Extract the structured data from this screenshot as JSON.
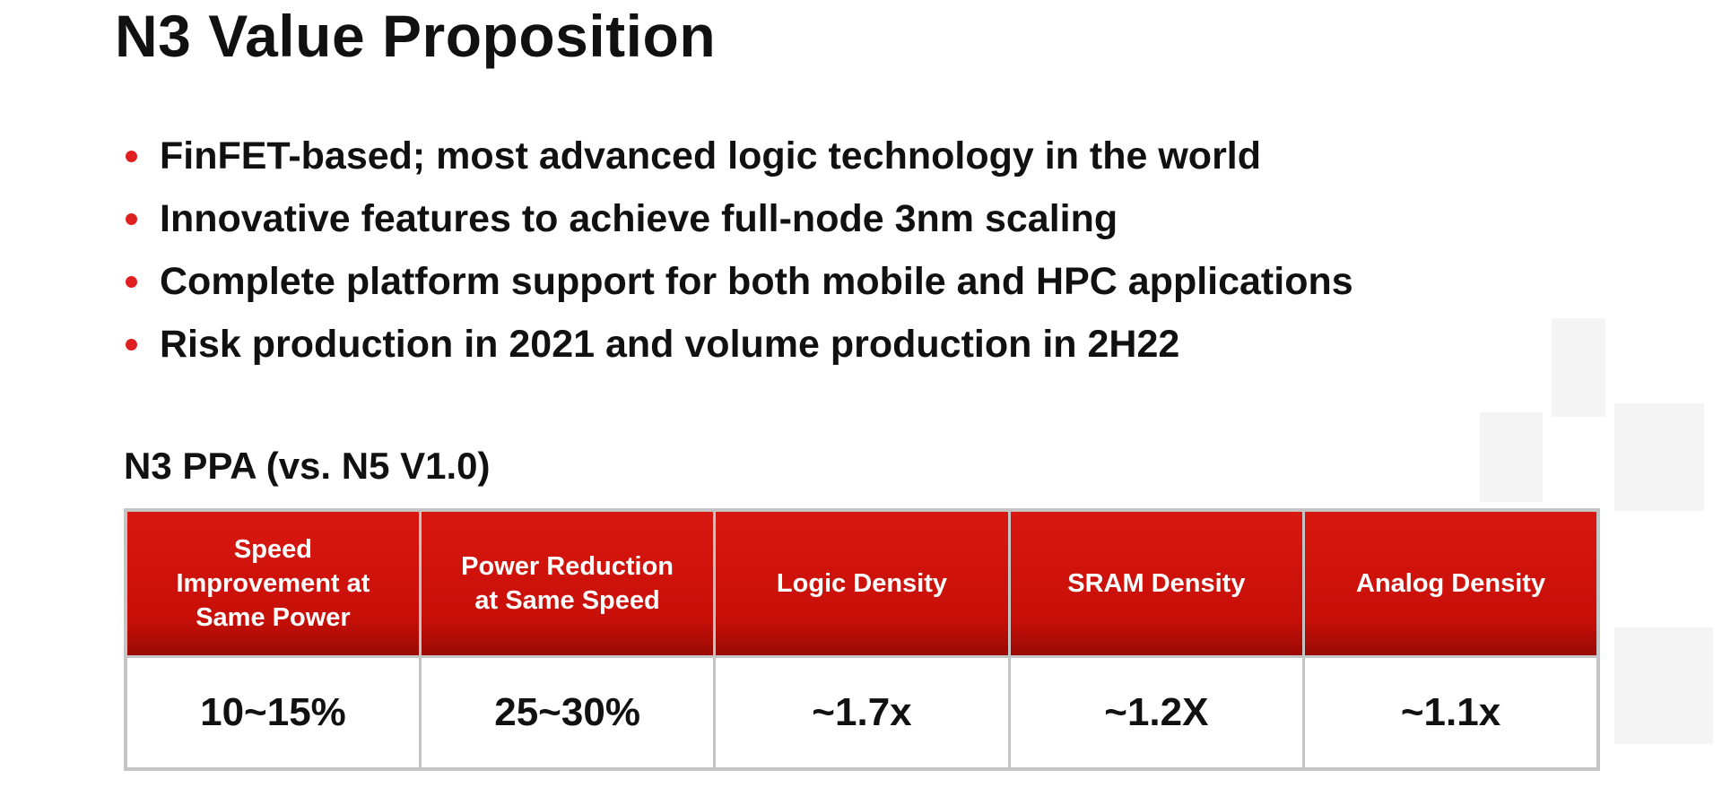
{
  "header": {
    "title": "N3 Value Proposition"
  },
  "bullets": [
    "FinFET-based; most advanced logic technology in the world",
    "Innovative features to achieve full-node 3nm scaling",
    "Complete platform support for both mobile and HPC applications",
    "Risk production in 2021 and volume production in 2H22"
  ],
  "table": {
    "title": "N3 PPA (vs. N5 V1.0)",
    "header": [
      "Speed Improvement at Same Power",
      "Power Reduction at Same Speed",
      "Logic Density",
      "SRAM Density",
      "Analog Density"
    ],
    "rows": [
      [
        "10~15%",
        "25~30%",
        "~1.7x",
        "~1.2X",
        "~1.1x"
      ]
    ]
  }
}
